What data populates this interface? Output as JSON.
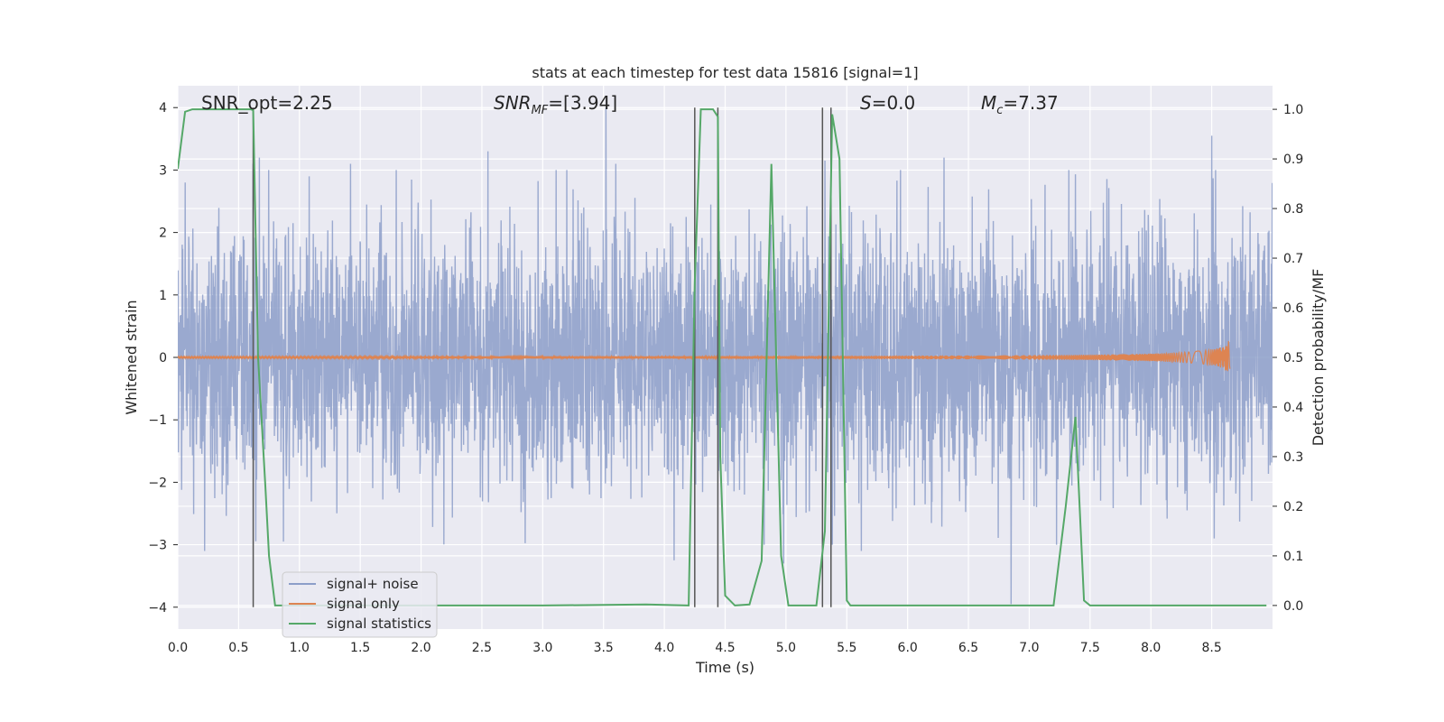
{
  "chart_data": {
    "type": "line",
    "title": "stats at each timestep for test data 15816 [signal=1]",
    "xlabel": "Time (s)",
    "ylabel": "Whitened strain",
    "y2label": "Detection probability/MF",
    "xlim": [
      0,
      9.0
    ],
    "ylim": [
      -4.35,
      4.35
    ],
    "y2lim": [
      -0.0475,
      1.0475
    ],
    "x_ticks": [
      "0.0",
      "0.5",
      "1.0",
      "1.5",
      "2.0",
      "2.5",
      "3.0",
      "3.5",
      "4.0",
      "4.5",
      "5.0",
      "5.5",
      "6.0",
      "6.5",
      "7.0",
      "7.5",
      "8.0",
      "8.5"
    ],
    "y_ticks": [
      "4",
      "3",
      "2",
      "1",
      "0",
      "−1",
      "−2",
      "−3",
      "−4"
    ],
    "y_tick_values": [
      4,
      3,
      2,
      1,
      0,
      -1,
      -2,
      -3,
      -4
    ],
    "y2_ticks": [
      "0.0",
      "0.1",
      "0.2",
      "0.3",
      "0.4",
      "0.5",
      "0.6",
      "0.7",
      "0.8",
      "0.9",
      "1.0"
    ],
    "y2_tick_values": [
      0,
      0.1,
      0.2,
      0.3,
      0.4,
      0.5,
      0.6,
      0.7,
      0.8,
      0.9,
      1.0
    ],
    "grid": true,
    "legend_position": "lower-left",
    "annotations": {
      "snr_opt": "SNR_opt=2.25",
      "snr_mf_base": "SNR",
      "snr_mf_sub": "MF",
      "snr_mf_value": "=[3.94]",
      "s_symbol": "S",
      "s_value": "=0.0",
      "mc_symbol": "M",
      "mc_sub": "c",
      "mc_value": "=7.37"
    },
    "series": [
      {
        "name": "signal+ noise",
        "color": "#8c9ec9",
        "kind": "noise",
        "x_range": [
          0,
          9.0
        ],
        "amplitude_std": 1.0,
        "spikes": [
          {
            "x": 0.06,
            "y": 2.8
          },
          {
            "x": 0.62,
            "y": 3.1
          },
          {
            "x": 0.67,
            "y": 3.2
          },
          {
            "x": 1.08,
            "y": 2.9
          },
          {
            "x": 1.42,
            "y": 3.1
          },
          {
            "x": 2.55,
            "y": 3.3
          },
          {
            "x": 3.52,
            "y": 4.0
          },
          {
            "x": 3.6,
            "y": 3.1
          },
          {
            "x": 5.32,
            "y": 3.15
          },
          {
            "x": 6.3,
            "y": 3.2
          },
          {
            "x": 8.5,
            "y": 3.55
          },
          {
            "x": 0.22,
            "y": -3.1
          },
          {
            "x": 4.08,
            "y": -3.25
          },
          {
            "x": 4.98,
            "y": -3.3
          },
          {
            "x": 5.62,
            "y": -3.1
          },
          {
            "x": 6.85,
            "y": -3.95
          },
          {
            "x": 8.52,
            "y": -2.9
          },
          {
            "x": 8.83,
            "y": -2.3
          }
        ]
      },
      {
        "name": "signal only",
        "color": "#dd8452",
        "kind": "chirp",
        "x_range": [
          0,
          8.65
        ],
        "final_amplitude": 0.3
      },
      {
        "name": "signal statistics",
        "color": "#55a868",
        "kind": "line",
        "axis": "right",
        "x": [
          0.0,
          0.06,
          0.12,
          0.6,
          0.62,
          0.66,
          0.72,
          0.75,
          0.8,
          1.0,
          2.0,
          3.0,
          3.85,
          4.2,
          4.25,
          4.3,
          4.35,
          4.4,
          4.44,
          4.46,
          4.5,
          4.58,
          4.7,
          4.8,
          4.88,
          4.96,
          5.02,
          5.25,
          5.32,
          5.38,
          5.44,
          5.5,
          5.53,
          5.6,
          7.0,
          7.2,
          7.3,
          7.38,
          7.45,
          7.5,
          8.0,
          8.95
        ],
        "y": [
          0.88,
          0.995,
          1.0,
          1.0,
          0.998,
          0.5,
          0.24,
          0.1,
          0.0,
          0.0,
          0.0,
          0.0,
          0.002,
          0.0,
          0.65,
          1.0,
          1.0,
          1.0,
          0.985,
          0.3,
          0.02,
          0.0,
          0.002,
          0.09,
          0.89,
          0.1,
          0.0,
          0.0,
          0.15,
          0.99,
          0.9,
          0.01,
          0.0,
          0.0,
          0.0,
          0.0,
          0.2,
          0.38,
          0.01,
          0.0,
          0.0,
          0.0
        ]
      }
    ],
    "vertical_markers": {
      "color": "#555555",
      "x": [
        0.62,
        4.25,
        4.44,
        5.3,
        5.37
      ],
      "y_range": [
        -4,
        4
      ]
    }
  }
}
